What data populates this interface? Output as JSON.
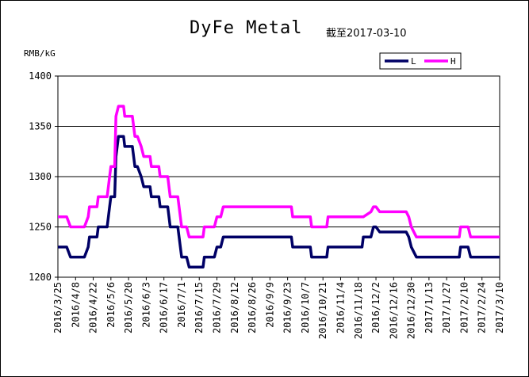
{
  "chart_data": {
    "type": "line",
    "title": "DyFe Metal",
    "subtitle": "截至2017-03-10",
    "ylabel": "RMB/kG",
    "ylim": [
      1200,
      1400
    ],
    "yticks": [
      1200,
      1250,
      1300,
      1350,
      1400
    ],
    "grid": true,
    "legend_position": "top-right",
    "xlim": [
      "2016-03-25",
      "2017-03-10"
    ],
    "x_tick_labels": [
      "2016/3/25",
      "2016/4/8",
      "2016/4/22",
      "2016/5/6",
      "2016/5/20",
      "2016/6/3",
      "2016/6/17",
      "2016/7/1",
      "2016/7/15",
      "2016/7/29",
      "2016/8/12",
      "2016/8/26",
      "2016/9/9",
      "2016/9/23",
      "2016/10/7",
      "2016/10/21",
      "2016/11/4",
      "2016/11/18",
      "2016/12/2",
      "2016/12/16",
      "2016/12/30",
      "2017/1/13",
      "2017/1/27",
      "2017/2/10",
      "2017/2/24",
      "2017/3/10"
    ],
    "x_tick_dates": [
      "2016-03-25",
      "2016-04-08",
      "2016-04-22",
      "2016-05-06",
      "2016-05-20",
      "2016-06-03",
      "2016-06-17",
      "2016-07-01",
      "2016-07-15",
      "2016-07-29",
      "2016-08-12",
      "2016-08-26",
      "2016-09-09",
      "2016-09-23",
      "2016-10-07",
      "2016-10-21",
      "2016-11-04",
      "2016-11-18",
      "2016-12-02",
      "2016-12-16",
      "2016-12-30",
      "2017-01-13",
      "2017-01-27",
      "2017-02-10",
      "2017-02-24",
      "2017-03-10"
    ],
    "series": [
      {
        "name": "L",
        "color": "#000066",
        "points": [
          [
            "2016-03-25",
            1230
          ],
          [
            "2016-04-01",
            1230
          ],
          [
            "2016-04-04",
            1220
          ],
          [
            "2016-04-15",
            1220
          ],
          [
            "2016-04-18",
            1230
          ],
          [
            "2016-04-19",
            1240
          ],
          [
            "2016-04-25",
            1240
          ],
          [
            "2016-04-26",
            1250
          ],
          [
            "2016-05-03",
            1250
          ],
          [
            "2016-05-05",
            1270
          ],
          [
            "2016-05-06",
            1280
          ],
          [
            "2016-05-09",
            1280
          ],
          [
            "2016-05-10",
            1320
          ],
          [
            "2016-05-12",
            1340
          ],
          [
            "2016-05-16",
            1340
          ],
          [
            "2016-05-17",
            1330
          ],
          [
            "2016-05-23",
            1330
          ],
          [
            "2016-05-25",
            1310
          ],
          [
            "2016-05-27",
            1310
          ],
          [
            "2016-05-30",
            1300
          ],
          [
            "2016-06-01",
            1290
          ],
          [
            "2016-06-06",
            1290
          ],
          [
            "2016-06-07",
            1280
          ],
          [
            "2016-06-13",
            1280
          ],
          [
            "2016-06-14",
            1270
          ],
          [
            "2016-06-20",
            1270
          ],
          [
            "2016-06-22",
            1250
          ],
          [
            "2016-06-28",
            1250
          ],
          [
            "2016-06-30",
            1230
          ],
          [
            "2016-07-01",
            1220
          ],
          [
            "2016-07-05",
            1220
          ],
          [
            "2016-07-07",
            1210
          ],
          [
            "2016-07-18",
            1210
          ],
          [
            "2016-07-19",
            1220
          ],
          [
            "2016-07-27",
            1220
          ],
          [
            "2016-07-29",
            1230
          ],
          [
            "2016-08-01",
            1230
          ],
          [
            "2016-08-03",
            1240
          ],
          [
            "2016-09-26",
            1240
          ],
          [
            "2016-09-27",
            1230
          ],
          [
            "2016-10-11",
            1230
          ],
          [
            "2016-10-12",
            1220
          ],
          [
            "2016-10-24",
            1220
          ],
          [
            "2016-10-25",
            1230
          ],
          [
            "2016-11-21",
            1230
          ],
          [
            "2016-11-22",
            1240
          ],
          [
            "2016-11-28",
            1240
          ],
          [
            "2016-11-30",
            1250
          ],
          [
            "2016-12-02",
            1250
          ],
          [
            "2016-12-05",
            1245
          ],
          [
            "2016-12-26",
            1245
          ],
          [
            "2016-12-28",
            1240
          ],
          [
            "2016-12-30",
            1230
          ],
          [
            "2017-01-03",
            1220
          ],
          [
            "2017-02-06",
            1220
          ],
          [
            "2017-02-07",
            1230
          ],
          [
            "2017-02-13",
            1230
          ],
          [
            "2017-02-15",
            1220
          ],
          [
            "2017-03-10",
            1220
          ]
        ]
      },
      {
        "name": "H",
        "color": "#ff00ff",
        "points": [
          [
            "2016-03-25",
            1260
          ],
          [
            "2016-04-01",
            1260
          ],
          [
            "2016-04-04",
            1250
          ],
          [
            "2016-04-15",
            1250
          ],
          [
            "2016-04-18",
            1260
          ],
          [
            "2016-04-19",
            1270
          ],
          [
            "2016-04-25",
            1270
          ],
          [
            "2016-04-26",
            1280
          ],
          [
            "2016-05-03",
            1280
          ],
          [
            "2016-05-05",
            1300
          ],
          [
            "2016-05-06",
            1310
          ],
          [
            "2016-05-09",
            1310
          ],
          [
            "2016-05-10",
            1360
          ],
          [
            "2016-05-12",
            1370
          ],
          [
            "2016-05-16",
            1370
          ],
          [
            "2016-05-17",
            1360
          ],
          [
            "2016-05-23",
            1360
          ],
          [
            "2016-05-25",
            1340
          ],
          [
            "2016-05-27",
            1340
          ],
          [
            "2016-05-30",
            1330
          ],
          [
            "2016-06-01",
            1320
          ],
          [
            "2016-06-06",
            1320
          ],
          [
            "2016-06-07",
            1310
          ],
          [
            "2016-06-13",
            1310
          ],
          [
            "2016-06-14",
            1300
          ],
          [
            "2016-06-20",
            1300
          ],
          [
            "2016-06-22",
            1280
          ],
          [
            "2016-06-28",
            1280
          ],
          [
            "2016-06-30",
            1260
          ],
          [
            "2016-07-01",
            1250
          ],
          [
            "2016-07-05",
            1250
          ],
          [
            "2016-07-07",
            1240
          ],
          [
            "2016-07-18",
            1240
          ],
          [
            "2016-07-19",
            1250
          ],
          [
            "2016-07-27",
            1250
          ],
          [
            "2016-07-29",
            1260
          ],
          [
            "2016-08-01",
            1260
          ],
          [
            "2016-08-03",
            1270
          ],
          [
            "2016-09-26",
            1270
          ],
          [
            "2016-09-27",
            1260
          ],
          [
            "2016-10-11",
            1260
          ],
          [
            "2016-10-12",
            1250
          ],
          [
            "2016-10-24",
            1250
          ],
          [
            "2016-10-25",
            1260
          ],
          [
            "2016-11-21",
            1260
          ],
          [
            "2016-11-22",
            1260
          ],
          [
            "2016-11-28",
            1265
          ],
          [
            "2016-11-30",
            1270
          ],
          [
            "2016-12-02",
            1270
          ],
          [
            "2016-12-05",
            1265
          ],
          [
            "2016-12-26",
            1265
          ],
          [
            "2016-12-28",
            1260
          ],
          [
            "2016-12-30",
            1250
          ],
          [
            "2017-01-03",
            1240
          ],
          [
            "2017-02-06",
            1240
          ],
          [
            "2017-02-07",
            1250
          ],
          [
            "2017-02-13",
            1250
          ],
          [
            "2017-02-15",
            1240
          ],
          [
            "2017-03-10",
            1240
          ]
        ]
      }
    ]
  }
}
